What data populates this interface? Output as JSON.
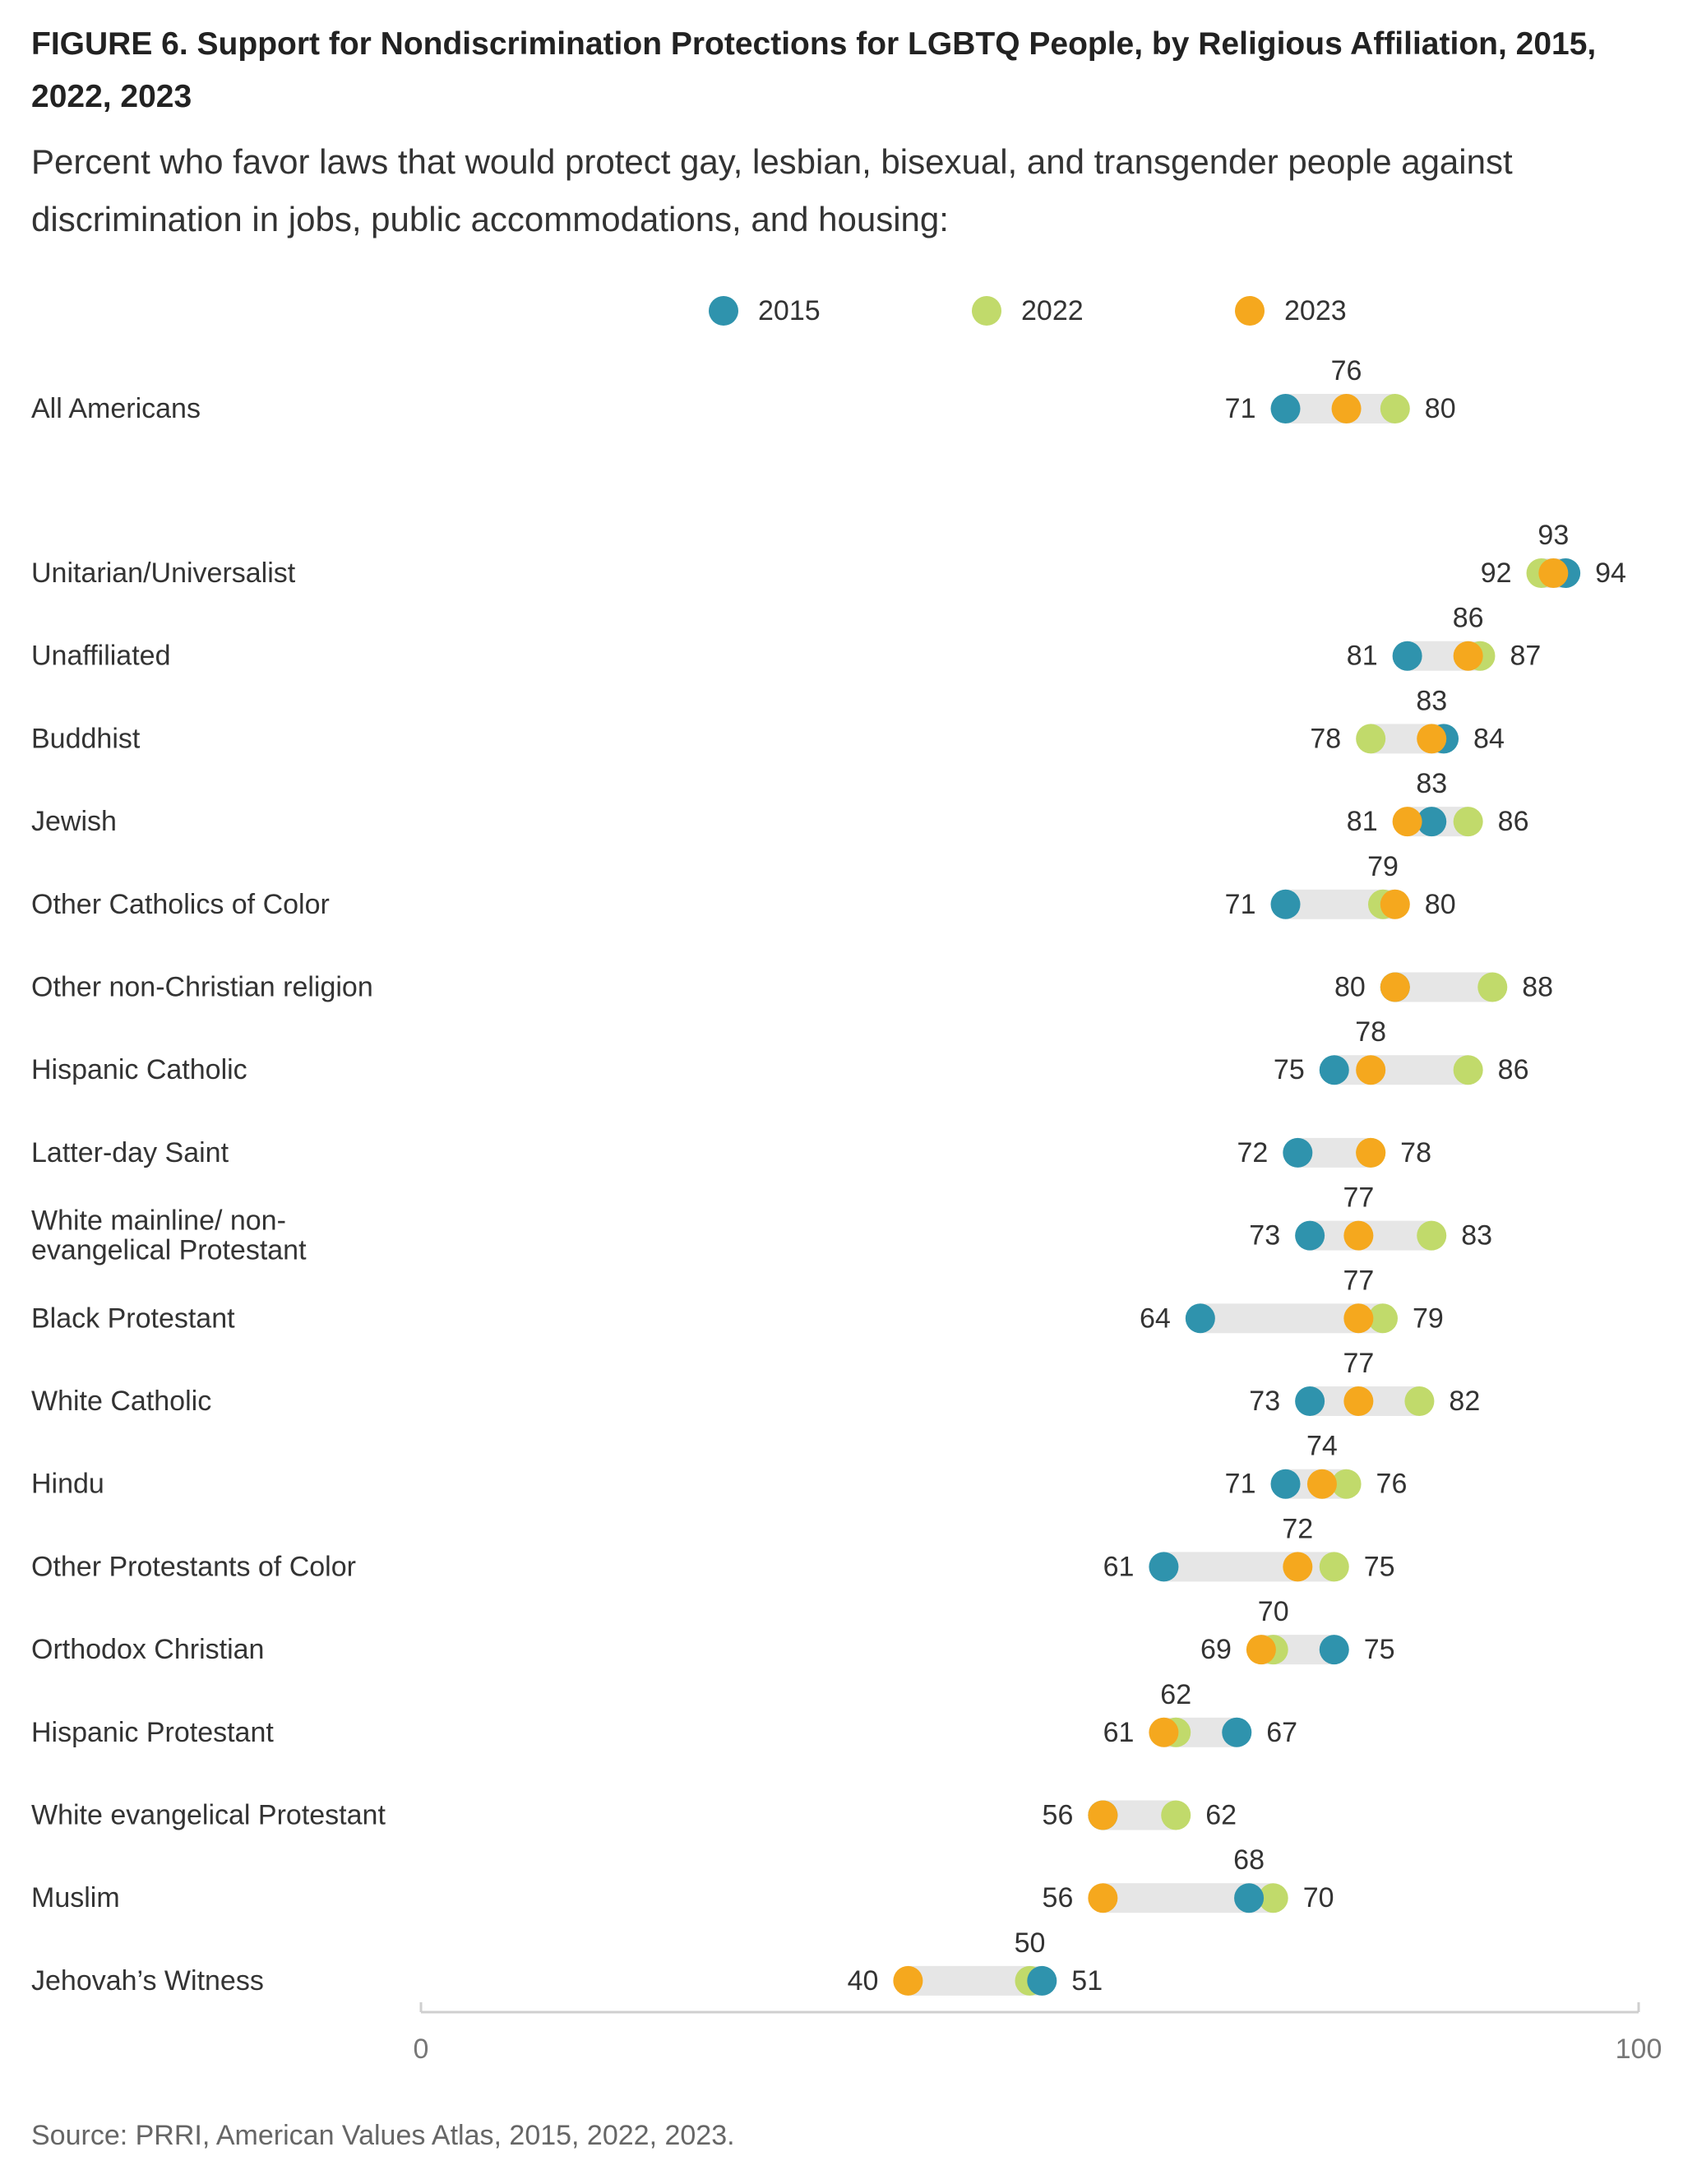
{
  "figure": {
    "title": "FIGURE 6.  Support for Nondiscrimination Protections for LGBTQ People, by Religious Affiliation, 2015, 2022, 2023",
    "subtitle": "Percent who favor laws that would protect gay, lesbian, bisexual, and transgender people against discrimination in jobs, public accommodations, and housing:",
    "source": "Source: PRRI, American Values Atlas, 2015, 2022, 2023."
  },
  "colors": {
    "2015": "#2f93ad",
    "2022": "#c1da6b",
    "2023": "#f5a81e",
    "range_bar": "#e6e6e6",
    "axis": "#cfcfcf"
  },
  "chart_data": {
    "type": "dot-range",
    "title": "FIGURE 6.  Support for Nondiscrimination Protections for LGBTQ People, by Religious Affiliation, 2015, 2022, 2023",
    "subtitle": "Percent who favor laws that would protect gay, lesbian, bisexual, and transgender people against discrimination in jobs, public accommodations, and housing:",
    "xlim": [
      0,
      100
    ],
    "x_ticks": [
      "0",
      "100"
    ],
    "legend_position": "top-center",
    "grid": false,
    "series": [
      {
        "name": "2015",
        "color": "#2f93ad"
      },
      {
        "name": "2022",
        "color": "#c1da6b"
      },
      {
        "name": "2023",
        "color": "#f5a81e"
      }
    ],
    "categories": [
      "All Americans",
      "Unitarian/Universalist",
      "Unaffiliated",
      "Buddhist",
      "Jewish",
      "Other Catholics of Color",
      "Other non-Christian religion",
      "Hispanic Catholic",
      "Latter-day Saint",
      "White mainline/ non-evangelical Protestant",
      "Black Protestant",
      "White Catholic",
      "Hindu",
      "Other Protestants of Color",
      "Orthodox Christian",
      "Hispanic Protestant",
      "White evangelical Protestant",
      "Muslim",
      "Jehovah’s Witness"
    ],
    "rows": [
      {
        "label": "All Americans",
        "label_lines": [
          "All Americans"
        ],
        "v2015": 71,
        "v2022": 80,
        "v2023": 76,
        "labels": {
          "left": "71",
          "right": "80",
          "top": "76"
        }
      },
      {
        "label": "Unitarian/Universalist",
        "label_lines": [
          "Unitarian/Universalist"
        ],
        "v2015": 94,
        "v2022": 92,
        "v2023": 93,
        "labels": {
          "left": "92",
          "right": "94",
          "top": "93"
        }
      },
      {
        "label": "Unaffiliated",
        "label_lines": [
          "Unaffiliated"
        ],
        "v2015": 81,
        "v2022": 87,
        "v2023": 86,
        "labels": {
          "left": "81",
          "right": "87",
          "top": "86"
        }
      },
      {
        "label": "Buddhist",
        "label_lines": [
          "Buddhist"
        ],
        "v2015": 84,
        "v2022": 78,
        "v2023": 83,
        "labels": {
          "left": "78",
          "right": "84",
          "top": "83"
        }
      },
      {
        "label": "Jewish",
        "label_lines": [
          "Jewish"
        ],
        "v2015": 83,
        "v2022": 86,
        "v2023": 81,
        "labels": {
          "left": "81",
          "right": "86",
          "top": "83"
        }
      },
      {
        "label": "Other Catholics of Color",
        "label_lines": [
          "Other Catholics of Color"
        ],
        "v2015": 71,
        "v2022": 79,
        "v2023": 80,
        "labels": {
          "left": "71",
          "right": "80",
          "top": "79"
        }
      },
      {
        "label": "Other non-Christian religion",
        "label_lines": [
          "Other non-Christian religion"
        ],
        "v2015": 80,
        "v2022": 88,
        "v2023": 80,
        "labels": {
          "left": "80",
          "right": "88",
          "top": ""
        }
      },
      {
        "label": "Hispanic Catholic",
        "label_lines": [
          "Hispanic Catholic"
        ],
        "v2015": 75,
        "v2022": 86,
        "v2023": 78,
        "labels": {
          "left": "75",
          "right": "86",
          "top": "78"
        }
      },
      {
        "label": "Latter-day Saint",
        "label_lines": [
          "Latter-day Saint"
        ],
        "v2015": 72,
        "v2022": 78,
        "v2023": 78,
        "labels": {
          "left": "72",
          "right": "78",
          "top": ""
        }
      },
      {
        "label": "White mainline/ non-evangelical Protestant",
        "label_lines": [
          "White mainline/ non-",
          "evangelical Protestant"
        ],
        "v2015": 73,
        "v2022": 83,
        "v2023": 77,
        "labels": {
          "left": "73",
          "right": "83",
          "top": "77"
        }
      },
      {
        "label": "Black Protestant",
        "label_lines": [
          "Black Protestant"
        ],
        "v2015": 64,
        "v2022": 79,
        "v2023": 77,
        "labels": {
          "left": "64",
          "right": "79",
          "top": "77"
        }
      },
      {
        "label": "White Catholic",
        "label_lines": [
          "White Catholic"
        ],
        "v2015": 73,
        "v2022": 82,
        "v2023": 77,
        "labels": {
          "left": "73",
          "right": "82",
          "top": "77"
        }
      },
      {
        "label": "Hindu",
        "label_lines": [
          "Hindu"
        ],
        "v2015": 71,
        "v2022": 76,
        "v2023": 74,
        "labels": {
          "left": "71",
          "right": "76",
          "top": "74"
        }
      },
      {
        "label": "Other Protestants of Color",
        "label_lines": [
          "Other Protestants of Color"
        ],
        "v2015": 61,
        "v2022": 75,
        "v2023": 72,
        "labels": {
          "left": "61",
          "right": "75",
          "top": "72"
        }
      },
      {
        "label": "Orthodox Christian",
        "label_lines": [
          "Orthodox Christian"
        ],
        "v2015": 75,
        "v2022": 70,
        "v2023": 69,
        "labels": {
          "left": "69",
          "right": "75",
          "top": "70"
        }
      },
      {
        "label": "Hispanic Protestant",
        "label_lines": [
          "Hispanic Protestant"
        ],
        "v2015": 67,
        "v2022": 62,
        "v2023": 61,
        "labels": {
          "left": "61",
          "right": "67",
          "top": "62"
        }
      },
      {
        "label": "White evangelical Protestant",
        "label_lines": [
          "White evangelical Protestant"
        ],
        "v2015": 56,
        "v2022": 62,
        "v2023": 56,
        "labels": {
          "left": "56",
          "right": "62",
          "top": ""
        }
      },
      {
        "label": "Muslim",
        "label_lines": [
          "Muslim"
        ],
        "v2015": 68,
        "v2022": 70,
        "v2023": 56,
        "labels": {
          "left": "56",
          "right": "70",
          "top": "68"
        }
      },
      {
        "label": "Jehovah’s Witness",
        "label_lines": [
          "Jehovah’s Witness"
        ],
        "v2015": 51,
        "v2022": 50,
        "v2023": 40,
        "labels": {
          "left": "40",
          "right": "51",
          "top": "50"
        }
      }
    ]
  }
}
